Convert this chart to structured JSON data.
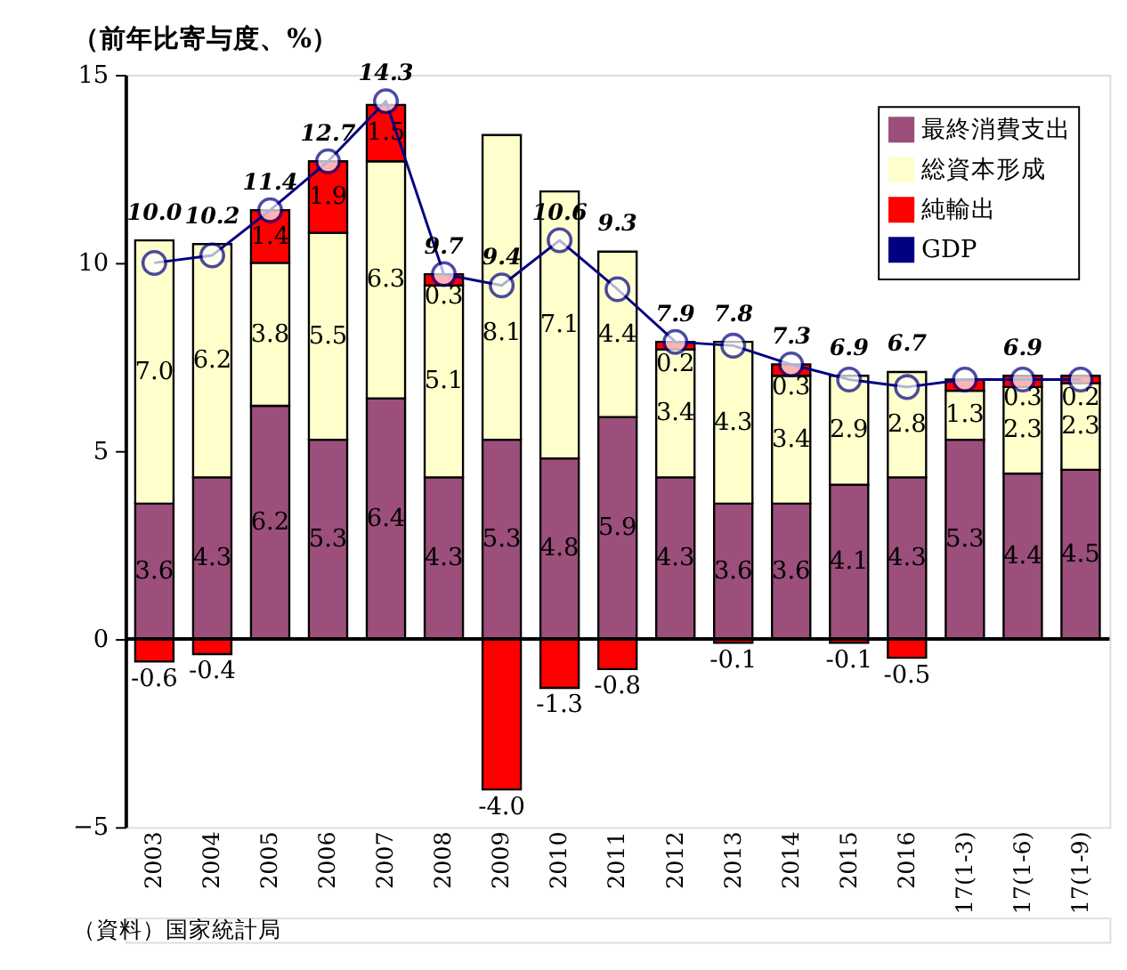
{
  "chart_data": {
    "type": "bar",
    "stacked": true,
    "title": "（前年比寄与度、%）",
    "categories": [
      "2003",
      "2004",
      "2005",
      "2006",
      "2007",
      "2008",
      "2009",
      "2010",
      "2011",
      "2012",
      "2013",
      "2014",
      "2015",
      "2016",
      "17(1-3)",
      "17(1-6)",
      "17(1-9)"
    ],
    "series": [
      {
        "name": "最終消費支出",
        "color": "#9b4f7a",
        "values": [
          3.6,
          4.3,
          6.2,
          5.3,
          6.4,
          4.3,
          5.3,
          4.8,
          5.9,
          4.3,
          3.6,
          3.6,
          4.1,
          4.3,
          5.3,
          4.4,
          4.5
        ],
        "value_labels": [
          "3.6",
          "4.3",
          "6.2",
          "5.3",
          "6.4",
          "4.3",
          "5.3",
          "4.8",
          "5.9",
          "4.3",
          "3.6",
          "3.6",
          "4.1",
          "4.3",
          "5.3",
          "4.4",
          "4.5"
        ]
      },
      {
        "name": "総資本形成",
        "color": "#ffffcc",
        "values": [
          7.0,
          6.2,
          3.8,
          5.5,
          6.3,
          5.1,
          8.1,
          7.1,
          4.4,
          3.4,
          4.3,
          3.4,
          2.9,
          2.8,
          1.3,
          2.3,
          2.3
        ],
        "value_labels": [
          "7.0",
          "6.2",
          "3.8",
          "5.5",
          "6.3",
          "5.1",
          "8.1",
          "7.1",
          "4.4",
          "3.4",
          "4.3",
          "3.4",
          "2.9",
          "2.8",
          "1.3",
          "2.3",
          "2.3"
        ]
      },
      {
        "name": "純輸出",
        "color": "#ff0000",
        "values": [
          -0.6,
          -0.4,
          1.4,
          1.9,
          1.5,
          0.3,
          -4.0,
          -1.3,
          -0.8,
          0.2,
          -0.1,
          0.3,
          -0.1,
          -0.5,
          0.3,
          0.3,
          0.2
        ],
        "value_labels": [
          "-0.6",
          "-0.4",
          "1.4",
          "1.9",
          "1.5",
          "0.3",
          "-4.0",
          "-1.3",
          "-0.8",
          "0.2",
          "-0.1",
          "0.3",
          "-0.1",
          "-0.5",
          null,
          "0.3",
          "0.2"
        ]
      },
      {
        "name": "GDP",
        "type": "line",
        "color": "#000080",
        "marker": "circle",
        "values": [
          10.0,
          10.2,
          11.4,
          12.7,
          14.3,
          9.7,
          9.4,
          10.6,
          9.3,
          7.9,
          7.8,
          7.3,
          6.9,
          6.7,
          6.9,
          6.9,
          6.9
        ],
        "value_labels": [
          "10.0",
          "10.2",
          "11.4",
          "12.7",
          "14.3",
          "9.7",
          "9.4",
          "10.6",
          "9.3",
          "7.9",
          "7.8",
          "7.3",
          "6.9",
          "6.7",
          null,
          "6.9",
          null
        ]
      }
    ],
    "ylim": [
      -5,
      15
    ],
    "yticks": [
      -5,
      0,
      5,
      10,
      15
    ],
    "grid": false,
    "legend": "top right",
    "ref_lines": [
      {
        "axis": "y",
        "value": 0
      }
    ],
    "annotations": [
      "（資料）国家統計局"
    ]
  }
}
